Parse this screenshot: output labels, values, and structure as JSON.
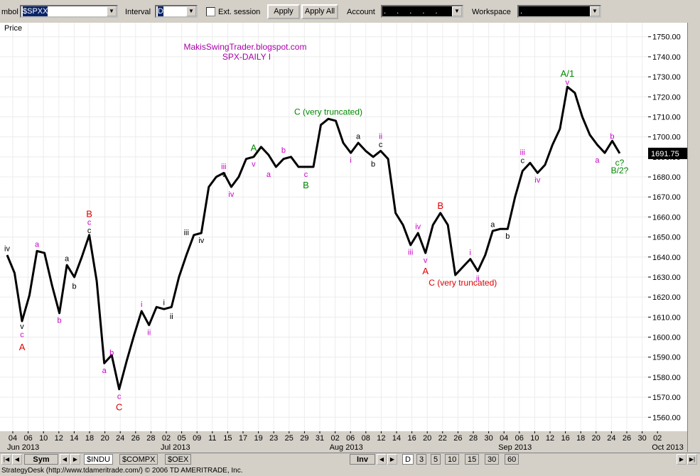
{
  "toolbar": {
    "symbol_label": "mbol",
    "symbol_value": "$SPXX",
    "interval_label": "Interval",
    "interval_value": "D",
    "ext_session_label": "Ext. session",
    "apply_label": "Apply",
    "apply_all_label": "Apply All",
    "account_label": "Account",
    "account_value": ". . . . .",
    "workspace_label": "Workspace",
    "workspace_value": "."
  },
  "chart_data": {
    "type": "line",
    "panel_label": "Price",
    "title_lines": [
      "MakisSwingTrader.blogspot.com",
      "SPX-DAILY I"
    ],
    "last_price_label": "1691.75",
    "ylim": [
      1553,
      1757
    ],
    "y_ticks": [
      1750,
      1740,
      1730,
      1720,
      1710,
      1700,
      1690,
      1680,
      1670,
      1660,
      1650,
      1640,
      1630,
      1620,
      1610,
      1600,
      1590,
      1580,
      1570,
      1560
    ],
    "x_tick_labels": [
      "04",
      "06",
      "10",
      "12",
      "14",
      "18",
      "20",
      "24",
      "26",
      "28",
      "02",
      "05",
      "09",
      "11",
      "15",
      "17",
      "19",
      "23",
      "25",
      "29",
      "31",
      "02",
      "06",
      "08",
      "12",
      "14",
      "16",
      "20",
      "22",
      "26",
      "28",
      "30",
      "04",
      "06",
      "10",
      "12",
      "16",
      "18",
      "20",
      "24",
      "26",
      "30",
      "02"
    ],
    "month_labels": [
      {
        "label": "Jun 2013",
        "at": 0
      },
      {
        "label": "Jul 2013",
        "at": 10
      },
      {
        "label": "Aug 2013",
        "at": 21
      },
      {
        "label": "Sep 2013",
        "at": 32
      },
      {
        "label": "Oct 2013",
        "at": 42
      }
    ],
    "series": [
      {
        "values": [
          1641,
          1632,
          1608,
          1621,
          1643,
          1642,
          1626,
          1612,
          1636,
          1630,
          1640,
          1651,
          1628,
          1587,
          1591,
          1574,
          1588,
          1601,
          1613,
          1606,
          1615,
          1614,
          1615,
          1630,
          1641,
          1651,
          1652,
          1675,
          1680,
          1682,
          1675,
          1680,
          1689,
          1690,
          1695,
          1691,
          1685,
          1689,
          1690,
          1685,
          1685,
          1685,
          1706,
          1709,
          1708,
          1697,
          1692,
          1697,
          1693,
          1690,
          1693,
          1689,
          1662,
          1656,
          1646,
          1652,
          1642,
          1656,
          1662,
          1656,
          1631,
          1635,
          1639,
          1633,
          1641,
          1653,
          1654,
          1654,
          1670,
          1683,
          1687,
          1682,
          1686,
          1696,
          1704,
          1725,
          1722,
          1710,
          1701,
          1696,
          1692,
          1698,
          1691.75
        ]
      }
    ],
    "annotations": [
      {
        "text": "iv",
        "i": 0,
        "y": 1643,
        "pos": "above",
        "color": "#000000"
      },
      {
        "text": "v",
        "i": 2,
        "y": 1608,
        "pos": "below",
        "color": "#000000"
      },
      {
        "text": "c",
        "i": 2,
        "y": 1604,
        "pos": "below",
        "color": "#cc00cc"
      },
      {
        "text": "A",
        "i": 2,
        "y": 1598,
        "pos": "below",
        "color": "#dd0000",
        "size": 13
      },
      {
        "text": "a",
        "i": 4,
        "y": 1645,
        "pos": "above",
        "color": "#cc00cc"
      },
      {
        "text": "b",
        "i": 7,
        "y": 1611,
        "pos": "below",
        "color": "#cc00cc"
      },
      {
        "text": "a",
        "i": 8,
        "y": 1638,
        "pos": "above",
        "color": "#000000"
      },
      {
        "text": "b",
        "i": 9,
        "y": 1628,
        "pos": "below",
        "color": "#000000"
      },
      {
        "text": "B",
        "i": 11,
        "y": 1660,
        "pos": "above",
        "color": "#dd0000",
        "size": 13
      },
      {
        "text": "c",
        "i": 11,
        "y": 1656,
        "pos": "above",
        "color": "#cc00cc"
      },
      {
        "text": "c",
        "i": 11,
        "y": 1652,
        "pos": "above",
        "color": "#000000"
      },
      {
        "text": "a",
        "i": 13,
        "y": 1586,
        "pos": "below",
        "color": "#cc00cc"
      },
      {
        "text": "b",
        "i": 14,
        "y": 1591,
        "pos": "above",
        "color": "#cc00cc"
      },
      {
        "text": "c",
        "i": 15,
        "y": 1573,
        "pos": "below",
        "color": "#cc00cc"
      },
      {
        "text": "C",
        "i": 15,
        "y": 1568,
        "pos": "below",
        "color": "#dd0000",
        "size": 13
      },
      {
        "text": "i",
        "i": 18,
        "y": 1615,
        "pos": "above",
        "color": "#cc00cc"
      },
      {
        "text": "ii",
        "i": 19,
        "y": 1605,
        "pos": "below",
        "color": "#cc00cc"
      },
      {
        "text": "i",
        "i": 21,
        "y": 1616,
        "pos": "above",
        "color": "#000000"
      },
      {
        "text": "ii",
        "i": 22,
        "y": 1613,
        "pos": "below",
        "color": "#000000"
      },
      {
        "text": "iii",
        "i": 24,
        "y": 1651,
        "pos": "above",
        "color": "#000000"
      },
      {
        "text": "iv",
        "i": 26,
        "y": 1651,
        "pos": "below",
        "color": "#000000"
      },
      {
        "text": "iii",
        "i": 29,
        "y": 1684,
        "pos": "above",
        "color": "#cc00cc"
      },
      {
        "text": "v",
        "i": 29,
        "y": 1680,
        "pos": "above",
        "color": "#000000"
      },
      {
        "text": "iv",
        "i": 30,
        "y": 1674,
        "pos": "below",
        "color": "#cc00cc"
      },
      {
        "text": "A",
        "i": 33,
        "y": 1693,
        "pos": "above",
        "color": "#008800",
        "size": 13
      },
      {
        "text": "v",
        "i": 33,
        "y": 1689,
        "pos": "below",
        "color": "#cc00cc"
      },
      {
        "text": "a",
        "i": 35,
        "y": 1684,
        "pos": "below",
        "color": "#cc00cc"
      },
      {
        "text": "b",
        "i": 37,
        "y": 1692,
        "pos": "above",
        "color": "#cc00cc"
      },
      {
        "text": "c",
        "i": 40,
        "y": 1684,
        "pos": "below",
        "color": "#cc00cc"
      },
      {
        "text": "B",
        "i": 40,
        "y": 1679,
        "pos": "below",
        "color": "#008800",
        "size": 13
      },
      {
        "text": "C (very truncated)",
        "i": 43,
        "y": 1711,
        "pos": "above",
        "color": "#008800",
        "size": 12
      },
      {
        "text": "i",
        "i": 46,
        "y": 1691,
        "pos": "below",
        "color": "#cc00cc"
      },
      {
        "text": "a",
        "i": 47,
        "y": 1699,
        "pos": "above",
        "color": "#000000"
      },
      {
        "text": "b",
        "i": 49,
        "y": 1689,
        "pos": "below",
        "color": "#000000"
      },
      {
        "text": "ii",
        "i": 50,
        "y": 1699,
        "pos": "above",
        "color": "#cc00cc"
      },
      {
        "text": "c",
        "i": 50,
        "y": 1695,
        "pos": "above",
        "color": "#000000"
      },
      {
        "text": "iii",
        "i": 54,
        "y": 1645,
        "pos": "below",
        "color": "#cc00cc"
      },
      {
        "text": "iv",
        "i": 55,
        "y": 1654,
        "pos": "above",
        "color": "#cc00cc"
      },
      {
        "text": "v",
        "i": 56,
        "y": 1641,
        "pos": "below",
        "color": "#cc00cc"
      },
      {
        "text": "A",
        "i": 56,
        "y": 1636,
        "pos": "below",
        "color": "#dd0000",
        "size": 13
      },
      {
        "text": "B",
        "i": 58,
        "y": 1664,
        "pos": "above",
        "color": "#dd0000",
        "size": 13
      },
      {
        "text": "C (very truncated)",
        "i": 61,
        "y": 1630,
        "pos": "below",
        "color": "#dd0000",
        "size": 12
      },
      {
        "text": "i",
        "i": 62,
        "y": 1641,
        "pos": "above",
        "color": "#cc00cc"
      },
      {
        "text": "ii",
        "i": 63,
        "y": 1632,
        "pos": "below",
        "color": "#cc00cc"
      },
      {
        "text": "a",
        "i": 65,
        "y": 1655,
        "pos": "above",
        "color": "#000000"
      },
      {
        "text": "b",
        "i": 67,
        "y": 1653,
        "pos": "below",
        "color": "#000000"
      },
      {
        "text": "iii",
        "i": 69,
        "y": 1691,
        "pos": "above",
        "color": "#cc00cc"
      },
      {
        "text": "c",
        "i": 69,
        "y": 1687,
        "pos": "above",
        "color": "#000000"
      },
      {
        "text": "iv",
        "i": 71,
        "y": 1681,
        "pos": "below",
        "color": "#cc00cc"
      },
      {
        "text": "A/1",
        "i": 75,
        "y": 1730,
        "pos": "above",
        "color": "#008800",
        "size": 13
      },
      {
        "text": "v",
        "i": 75,
        "y": 1726,
        "pos": "above",
        "color": "#cc00cc"
      },
      {
        "text": "a",
        "i": 79,
        "y": 1691,
        "pos": "below",
        "color": "#cc00cc"
      },
      {
        "text": "b",
        "i": 81,
        "y": 1699,
        "pos": "above",
        "color": "#cc00cc"
      },
      {
        "text": "c?",
        "i": 82,
        "y": 1690,
        "pos": "below",
        "color": "#008800",
        "size": 12
      },
      {
        "text": "B/2?",
        "i": 82,
        "y": 1686,
        "pos": "below",
        "color": "#008800",
        "size": 12
      }
    ]
  },
  "bottom": {
    "sym_tab": "Sym",
    "tabs": [
      "$INDU",
      "$COMPX",
      "$OEX"
    ],
    "inv_tab": "Inv",
    "interval_tabs": [
      "D",
      "3",
      "5",
      "10",
      "15",
      "30",
      "60"
    ]
  },
  "status_text": "StrategyDesk (http://www.tdameritrade.com/) © 2006 TD AMERITRADE, Inc."
}
